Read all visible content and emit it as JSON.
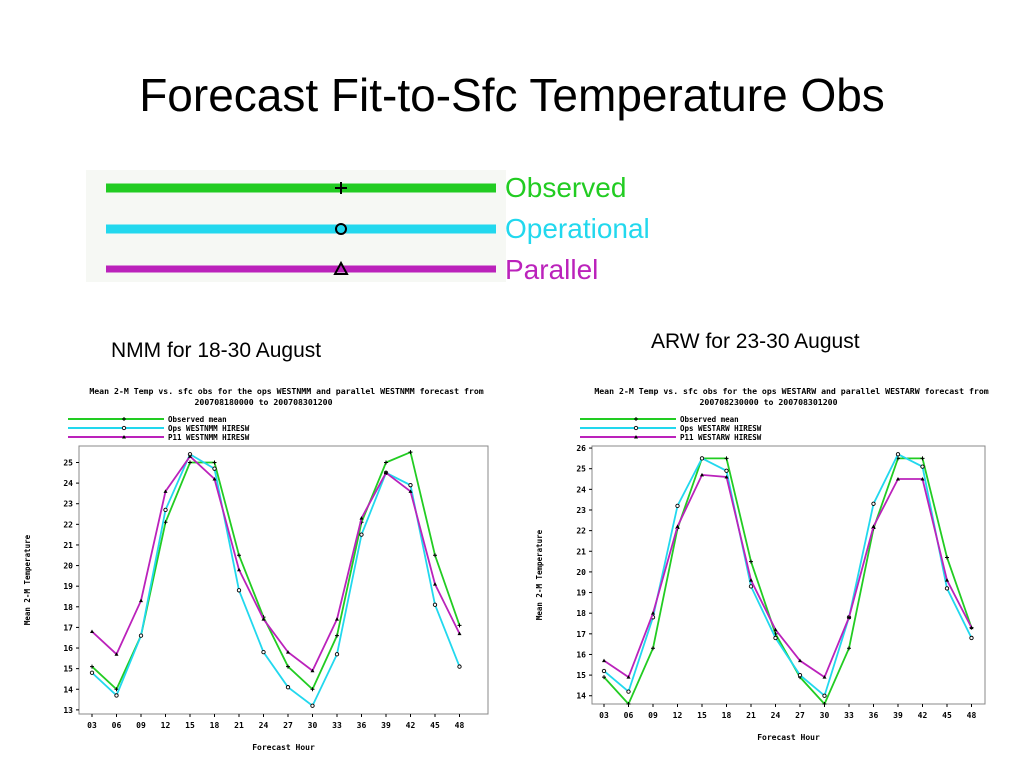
{
  "slide": {
    "title": "Forecast Fit-to-Sfc Temperature Obs",
    "legend": [
      {
        "label": "Observed",
        "color": "#22cc22",
        "marker": "plus-icon"
      },
      {
        "label": "Operational",
        "color": "#22d8ee",
        "marker": "circle-icon"
      },
      {
        "label": "Parallel",
        "color": "#bb22bb",
        "marker": "triangle-icon"
      }
    ],
    "left_caption": "NMM for 18-30 August",
    "right_caption": "ARW for 23-30 August"
  },
  "chart_data": [
    {
      "type": "line",
      "title": "Mean 2-M Temp vs. sfc obs for the ops WESTNMM and parallel WESTNMM forecast from",
      "subtitle": "200708180000 to 200708301200",
      "xlabel": "Forecast Hour",
      "ylabel": "Mean 2-M Temperature",
      "categories": [
        "03",
        "06",
        "09",
        "12",
        "15",
        "18",
        "21",
        "24",
        "27",
        "30",
        "33",
        "36",
        "39",
        "42",
        "45",
        "48"
      ],
      "ylim": [
        12.8,
        25.8
      ],
      "yticks": [
        13,
        14,
        15,
        16,
        17,
        18,
        19,
        20,
        21,
        22,
        23,
        24,
        25
      ],
      "legend_position": "top-left",
      "series": [
        {
          "name": "Observed mean",
          "color": "#22cc22",
          "values": [
            15.1,
            14.0,
            16.6,
            22.1,
            25.0,
            25.0,
            20.5,
            17.5,
            15.1,
            14.0,
            16.6,
            22.1,
            25.0,
            25.5,
            20.5,
            17.1
          ]
        },
        {
          "name": "Ops WESTNMM HIRESW",
          "color": "#22d8ee",
          "values": [
            14.8,
            13.7,
            16.6,
            22.7,
            25.4,
            24.7,
            18.8,
            15.8,
            14.1,
            13.2,
            15.7,
            21.5,
            24.5,
            23.9,
            18.1,
            15.1
          ]
        },
        {
          "name": "P11 WESTNMM HIRESW",
          "color": "#bb22bb",
          "values": [
            16.8,
            15.7,
            18.3,
            23.6,
            25.3,
            24.2,
            19.8,
            17.4,
            15.8,
            14.9,
            17.4,
            22.3,
            24.5,
            23.6,
            19.1,
            16.7
          ]
        }
      ]
    },
    {
      "type": "line",
      "title": "Mean 2-M Temp vs. sfc obs for the ops WESTARW and parallel WESTARW forecast from",
      "subtitle": "200708230000 to 200708301200",
      "xlabel": "Forecast Hour",
      "ylabel": "Mean 2-M Temperature",
      "categories": [
        "03",
        "06",
        "09",
        "12",
        "15",
        "18",
        "21",
        "24",
        "27",
        "30",
        "33",
        "36",
        "39",
        "42",
        "45",
        "48"
      ],
      "ylim": [
        13.6,
        26.1
      ],
      "yticks": [
        14,
        15,
        16,
        17,
        18,
        19,
        20,
        21,
        22,
        23,
        24,
        25,
        26
      ],
      "legend_position": "top-left",
      "series": [
        {
          "name": "Observed mean",
          "color": "#22cc22",
          "values": [
            14.9,
            13.6,
            16.3,
            22.1,
            25.5,
            25.5,
            20.5,
            17.0,
            14.9,
            13.6,
            16.3,
            22.1,
            25.5,
            25.5,
            20.7,
            17.3
          ]
        },
        {
          "name": "Ops WESTARW HIRESW",
          "color": "#22d8ee",
          "values": [
            15.2,
            14.2,
            17.8,
            23.2,
            25.5,
            24.9,
            19.3,
            16.8,
            15.0,
            14.0,
            17.8,
            23.3,
            25.7,
            25.1,
            19.2,
            16.8
          ]
        },
        {
          "name": "P11 WESTARW HIRESW",
          "color": "#bb22bb",
          "values": [
            15.7,
            14.9,
            18.0,
            22.2,
            24.7,
            24.6,
            19.6,
            17.2,
            15.7,
            14.9,
            17.8,
            22.2,
            24.5,
            24.5,
            19.6,
            17.3
          ]
        }
      ]
    }
  ]
}
